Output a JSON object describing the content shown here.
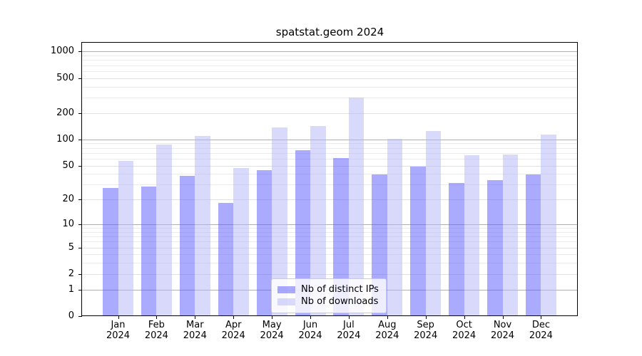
{
  "chart_data": {
    "type": "bar",
    "title": "spatstat.geom 2024",
    "x_axis": {
      "categories": [
        "Jan",
        "Feb",
        "Mar",
        "Apr",
        "May",
        "Jun",
        "Jul",
        "Aug",
        "Sep",
        "Oct",
        "Nov",
        "Dec"
      ],
      "year_label": "2024"
    },
    "y_axis": {
      "scale": "log1p",
      "labeled_ticks": [
        0,
        1,
        2,
        5,
        10,
        20,
        50,
        100,
        200,
        500,
        1000
      ],
      "major_gridlines": [
        1,
        10,
        100,
        1000
      ],
      "minor_gridlines": [
        3,
        4,
        6,
        7,
        8,
        9,
        30,
        40,
        60,
        70,
        80,
        90,
        300,
        400,
        600,
        700,
        800,
        900
      ],
      "range_top": 1258
    },
    "series": [
      {
        "name": "Nb of distinct IPs",
        "color": "#5555ff",
        "values": [
          27,
          28,
          37,
          18,
          43,
          74,
          60,
          39,
          48,
          31,
          33,
          39
        ]
      },
      {
        "name": "Nb of downloads",
        "color": "#b4b4f8",
        "values": [
          55,
          85,
          107,
          46,
          135,
          140,
          292,
          100,
          123,
          65,
          66,
          111
        ]
      }
    ],
    "bar_alpha": 0.5,
    "legend": {
      "position": "lower center"
    },
    "grid": true
  }
}
